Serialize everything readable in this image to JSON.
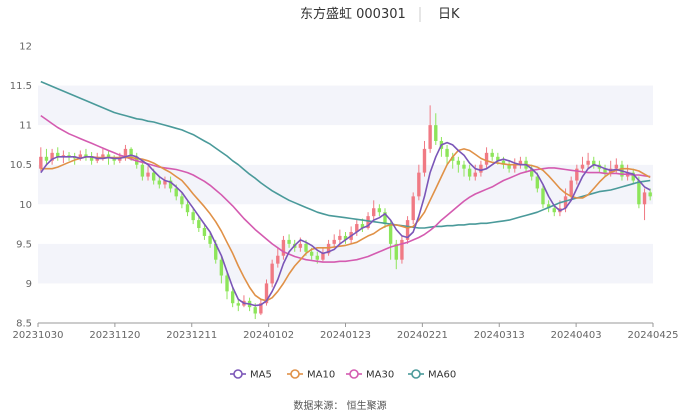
{
  "chart_data": {
    "type": "candlestick",
    "title_left": "东方盛虹 000301",
    "title_right": "日K",
    "source": "数据来源：  恒生聚源",
    "y_ticks": [
      8.5,
      9,
      9.5,
      10,
      10.5,
      11,
      11.5,
      12
    ],
    "x_ticks": [
      "20231030",
      "20231120",
      "20231211",
      "20240102",
      "20240123",
      "20240221",
      "20240313",
      "20240403",
      "20240425"
    ],
    "ylim": [
      8.5,
      12
    ],
    "legend": [
      {
        "name": "MA5",
        "color": "#7b56b8"
      },
      {
        "name": "MA10",
        "color": "#e09147"
      },
      {
        "name": "MA30",
        "color": "#d45bb0"
      },
      {
        "name": "MA60",
        "color": "#4a9a9a"
      }
    ],
    "colors": {
      "up": "#f07a84",
      "down": "#8de55a"
    },
    "candles": [
      [
        10.45,
        10.6,
        10.72,
        10.42
      ],
      [
        10.6,
        10.55,
        10.7,
        10.5
      ],
      [
        10.55,
        10.65,
        10.7,
        10.5
      ],
      [
        10.65,
        10.6,
        10.72,
        10.55
      ],
      [
        10.6,
        10.62,
        10.68,
        10.52
      ],
      [
        10.62,
        10.6,
        10.66,
        10.55
      ],
      [
        10.6,
        10.58,
        10.65,
        10.5
      ],
      [
        10.58,
        10.63,
        10.68,
        10.55
      ],
      [
        10.63,
        10.6,
        10.7,
        10.55
      ],
      [
        10.6,
        10.55,
        10.66,
        10.5
      ],
      [
        10.55,
        10.6,
        10.65,
        10.52
      ],
      [
        10.6,
        10.63,
        10.7,
        10.55
      ],
      [
        10.63,
        10.58,
        10.68,
        10.5
      ],
      [
        10.58,
        10.55,
        10.62,
        10.5
      ],
      [
        10.55,
        10.6,
        10.65,
        10.52
      ],
      [
        10.6,
        10.7,
        10.75,
        10.55
      ],
      [
        10.7,
        10.6,
        10.72,
        10.55
      ],
      [
        10.6,
        10.5,
        10.65,
        10.45
      ],
      [
        10.5,
        10.35,
        10.55,
        10.3
      ],
      [
        10.35,
        10.4,
        10.48,
        10.3
      ],
      [
        10.4,
        10.3,
        10.45,
        10.25
      ],
      [
        10.3,
        10.25,
        10.35,
        10.2
      ],
      [
        10.25,
        10.3,
        10.35,
        10.2
      ],
      [
        10.3,
        10.2,
        10.35,
        10.15
      ],
      [
        10.2,
        10.1,
        10.25,
        10.05
      ],
      [
        10.1,
        10.0,
        10.15,
        9.95
      ],
      [
        10.0,
        9.9,
        10.05,
        9.85
      ],
      [
        9.9,
        9.8,
        9.95,
        9.75
      ],
      [
        9.8,
        9.7,
        9.85,
        9.65
      ],
      [
        9.7,
        9.6,
        9.75,
        9.55
      ],
      [
        9.6,
        9.5,
        9.65,
        9.45
      ],
      [
        9.5,
        9.3,
        9.55,
        9.25
      ],
      [
        9.3,
        9.1,
        9.35,
        9.0
      ],
      [
        9.1,
        8.9,
        9.15,
        8.8
      ],
      [
        8.9,
        8.75,
        8.95,
        8.7
      ],
      [
        8.75,
        8.72,
        8.8,
        8.65
      ],
      [
        8.72,
        8.78,
        8.85,
        8.7
      ],
      [
        8.78,
        8.7,
        8.82,
        8.65
      ],
      [
        8.7,
        8.62,
        8.75,
        8.55
      ],
      [
        8.62,
        8.75,
        8.8,
        8.6
      ],
      [
        8.75,
        9.0,
        9.05,
        8.72
      ],
      [
        9.0,
        9.25,
        9.3,
        8.95
      ],
      [
        9.25,
        9.35,
        9.45,
        9.2
      ],
      [
        9.35,
        9.55,
        9.6,
        9.3
      ],
      [
        9.55,
        9.5,
        9.62,
        9.45
      ],
      [
        9.5,
        9.45,
        9.55,
        9.4
      ],
      [
        9.45,
        9.5,
        9.58,
        9.4
      ],
      [
        9.5,
        9.4,
        9.55,
        9.35
      ],
      [
        9.4,
        9.35,
        9.45,
        9.3
      ],
      [
        9.35,
        9.3,
        9.4,
        9.25
      ],
      [
        9.3,
        9.38,
        9.45,
        9.28
      ],
      [
        9.38,
        9.5,
        9.55,
        9.35
      ],
      [
        9.5,
        9.55,
        9.62,
        9.45
      ],
      [
        9.55,
        9.6,
        9.68,
        9.5
      ],
      [
        9.6,
        9.55,
        9.65,
        9.5
      ],
      [
        9.55,
        9.65,
        9.72,
        9.5
      ],
      [
        9.65,
        9.75,
        9.8,
        9.6
      ],
      [
        9.75,
        9.7,
        9.82,
        9.65
      ],
      [
        9.7,
        9.85,
        9.9,
        9.68
      ],
      [
        9.85,
        9.95,
        10.05,
        9.8
      ],
      [
        9.95,
        9.9,
        10.0,
        9.85
      ],
      [
        9.9,
        9.75,
        9.95,
        9.7
      ],
      [
        9.75,
        9.5,
        9.8,
        9.3
      ],
      [
        9.5,
        9.3,
        9.55,
        9.18
      ],
      [
        9.3,
        9.55,
        9.6,
        9.25
      ],
      [
        9.55,
        9.8,
        9.85,
        9.5
      ],
      [
        9.8,
        10.1,
        10.15,
        9.75
      ],
      [
        10.1,
        10.4,
        10.5,
        10.05
      ],
      [
        10.4,
        10.7,
        10.8,
        10.35
      ],
      [
        10.7,
        11.0,
        11.25,
        10.65
      ],
      [
        11.0,
        10.8,
        11.15,
        10.75
      ],
      [
        10.8,
        10.7,
        10.85,
        10.6
      ],
      [
        10.7,
        10.6,
        10.75,
        10.5
      ],
      [
        10.6,
        10.55,
        10.65,
        10.45
      ],
      [
        10.55,
        10.5,
        10.6,
        10.4
      ],
      [
        10.5,
        10.45,
        10.55,
        10.35
      ],
      [
        10.45,
        10.35,
        10.5,
        10.3
      ],
      [
        10.35,
        10.4,
        10.5,
        10.3
      ],
      [
        10.4,
        10.5,
        10.55,
        10.35
      ],
      [
        10.5,
        10.65,
        10.72,
        10.45
      ],
      [
        10.65,
        10.6,
        10.7,
        10.55
      ],
      [
        10.6,
        10.55,
        10.65,
        10.5
      ],
      [
        10.55,
        10.5,
        10.6,
        10.45
      ],
      [
        10.5,
        10.45,
        10.55,
        10.4
      ],
      [
        10.45,
        10.5,
        10.58,
        10.4
      ],
      [
        10.5,
        10.55,
        10.6,
        10.45
      ],
      [
        10.55,
        10.45,
        10.6,
        10.4
      ],
      [
        10.45,
        10.35,
        10.5,
        10.3
      ],
      [
        10.35,
        10.2,
        10.4,
        10.15
      ],
      [
        10.2,
        10.0,
        10.25,
        9.95
      ],
      [
        10.0,
        9.95,
        10.05,
        9.9
      ],
      [
        9.95,
        9.9,
        10.0,
        9.85
      ],
      [
        9.9,
        9.95,
        10.05,
        9.85
      ],
      [
        9.95,
        10.1,
        10.2,
        9.9
      ],
      [
        10.1,
        10.3,
        10.35,
        10.05
      ],
      [
        10.3,
        10.45,
        10.5,
        10.25
      ],
      [
        10.45,
        10.5,
        10.6,
        10.4
      ],
      [
        10.5,
        10.55,
        10.65,
        10.45
      ],
      [
        10.55,
        10.5,
        10.6,
        10.45
      ],
      [
        10.5,
        10.45,
        10.55,
        10.4
      ],
      [
        10.45,
        10.4,
        10.5,
        10.35
      ],
      [
        10.4,
        10.45,
        10.55,
        10.35
      ],
      [
        10.45,
        10.5,
        10.58,
        10.4
      ],
      [
        10.5,
        10.35,
        10.55,
        10.3
      ],
      [
        10.35,
        10.4,
        10.5,
        10.3
      ],
      [
        10.4,
        10.3,
        10.45,
        10.25
      ],
      [
        10.3,
        10.0,
        10.35,
        9.95
      ],
      [
        10.0,
        10.15,
        10.2,
        9.8
      ],
      [
        10.15,
        10.1,
        10.2,
        10.05
      ]
    ],
    "ma5": [
      10.4,
      10.5,
      10.57,
      10.6,
      10.6,
      10.6,
      10.6,
      10.58,
      10.6,
      10.6,
      10.58,
      10.58,
      10.59,
      10.58,
      10.58,
      10.6,
      10.62,
      10.6,
      10.55,
      10.5,
      10.42,
      10.35,
      10.3,
      10.28,
      10.22,
      10.15,
      10.05,
      9.95,
      9.85,
      9.75,
      9.65,
      9.5,
      9.35,
      9.15,
      8.95,
      8.8,
      8.75,
      8.74,
      8.72,
      8.73,
      8.78,
      8.9,
      9.05,
      9.25,
      9.4,
      9.48,
      9.55,
      9.52,
      9.48,
      9.42,
      9.38,
      9.4,
      9.43,
      9.5,
      9.55,
      9.6,
      9.65,
      9.7,
      9.73,
      9.8,
      9.83,
      9.88,
      9.8,
      9.68,
      9.6,
      9.58,
      9.65,
      9.85,
      10.1,
      10.4,
      10.6,
      10.75,
      10.78,
      10.75,
      10.68,
      10.62,
      10.52,
      10.45,
      10.43,
      10.45,
      10.5,
      10.55,
      10.57,
      10.55,
      10.52,
      10.5,
      10.5,
      10.45,
      10.38,
      10.25,
      10.1,
      9.98,
      9.92,
      9.95,
      10.05,
      10.2,
      10.35,
      10.45,
      10.5,
      10.48,
      10.45,
      10.43,
      10.44,
      10.42,
      10.4,
      10.38,
      10.3,
      10.22,
      10.18
    ],
    "ma10": [
      10.45,
      10.45,
      10.45,
      10.47,
      10.5,
      10.53,
      10.56,
      10.58,
      10.6,
      10.6,
      10.59,
      10.59,
      10.59,
      10.59,
      10.59,
      10.59,
      10.59,
      10.58,
      10.57,
      10.55,
      10.52,
      10.48,
      10.44,
      10.4,
      10.35,
      10.3,
      10.22,
      10.13,
      10.05,
      9.97,
      9.88,
      9.78,
      9.66,
      9.52,
      9.38,
      9.22,
      9.08,
      8.95,
      8.85,
      8.8,
      8.78,
      8.82,
      8.9,
      9.0,
      9.12,
      9.22,
      9.3,
      9.38,
      9.43,
      9.45,
      9.45,
      9.45,
      9.46,
      9.47,
      9.48,
      9.5,
      9.52,
      9.56,
      9.6,
      9.63,
      9.68,
      9.72,
      9.74,
      9.74,
      9.72,
      9.7,
      9.72,
      9.8,
      9.9,
      10.05,
      10.2,
      10.35,
      10.5,
      10.6,
      10.68,
      10.7,
      10.68,
      10.63,
      10.58,
      10.55,
      10.53,
      10.52,
      10.51,
      10.5,
      10.5,
      10.5,
      10.5,
      10.49,
      10.47,
      10.43,
      10.36,
      10.28,
      10.2,
      10.14,
      10.1,
      10.08,
      10.08,
      10.12,
      10.2,
      10.28,
      10.35,
      10.4,
      10.43,
      10.45,
      10.45,
      10.44,
      10.42,
      10.38,
      10.34
    ],
    "ma30": [
      11.12,
      11.07,
      11.02,
      10.97,
      10.93,
      10.89,
      10.86,
      10.83,
      10.8,
      10.77,
      10.74,
      10.71,
      10.68,
      10.65,
      10.62,
      10.6,
      10.57,
      10.55,
      10.53,
      10.51,
      10.49,
      10.47,
      10.46,
      10.45,
      10.44,
      10.42,
      10.4,
      10.37,
      10.33,
      10.29,
      10.24,
      10.18,
      10.12,
      10.05,
      9.98,
      9.9,
      9.82,
      9.75,
      9.68,
      9.62,
      9.56,
      9.5,
      9.45,
      9.4,
      9.37,
      9.34,
      9.32,
      9.3,
      9.29,
      9.28,
      9.27,
      9.27,
      9.27,
      9.28,
      9.28,
      9.29,
      9.3,
      9.32,
      9.34,
      9.37,
      9.4,
      9.43,
      9.46,
      9.48,
      9.5,
      9.52,
      9.55,
      9.58,
      9.62,
      9.67,
      9.73,
      9.8,
      9.86,
      9.92,
      9.98,
      10.04,
      10.09,
      10.13,
      10.16,
      10.19,
      10.22,
      10.26,
      10.3,
      10.33,
      10.36,
      10.39,
      10.41,
      10.43,
      10.44,
      10.45,
      10.46,
      10.46,
      10.45,
      10.44,
      10.43,
      10.42,
      10.41,
      10.4,
      10.4,
      10.4,
      10.39,
      10.39,
      10.39,
      10.38,
      10.38,
      10.37,
      10.37,
      10.36,
      10.35
    ],
    "ma60": [
      11.55,
      11.52,
      11.49,
      11.46,
      11.43,
      11.4,
      11.37,
      11.34,
      11.31,
      11.28,
      11.25,
      11.22,
      11.19,
      11.16,
      11.14,
      11.12,
      11.1,
      11.08,
      11.07,
      11.05,
      11.04,
      11.02,
      11.0,
      10.98,
      10.96,
      10.94,
      10.91,
      10.88,
      10.84,
      10.8,
      10.76,
      10.71,
      10.66,
      10.61,
      10.55,
      10.5,
      10.44,
      10.38,
      10.33,
      10.27,
      10.22,
      10.17,
      10.13,
      10.09,
      10.05,
      10.02,
      9.99,
      9.96,
      9.93,
      9.9,
      9.88,
      9.86,
      9.85,
      9.84,
      9.83,
      9.82,
      9.81,
      9.8,
      9.79,
      9.78,
      9.77,
      9.76,
      9.75,
      9.74,
      9.73,
      9.72,
      9.71,
      9.7,
      9.7,
      9.71,
      9.72,
      9.72,
      9.73,
      9.73,
      9.74,
      9.74,
      9.75,
      9.75,
      9.76,
      9.76,
      9.77,
      9.78,
      9.79,
      9.8,
      9.82,
      9.84,
      9.86,
      9.88,
      9.9,
      9.93,
      9.96,
      9.99,
      10.02,
      10.04,
      10.06,
      10.08,
      10.1,
      10.12,
      10.14,
      10.16,
      10.17,
      10.18,
      10.2,
      10.22,
      10.24,
      10.26,
      10.28,
      10.29,
      10.3
    ]
  }
}
